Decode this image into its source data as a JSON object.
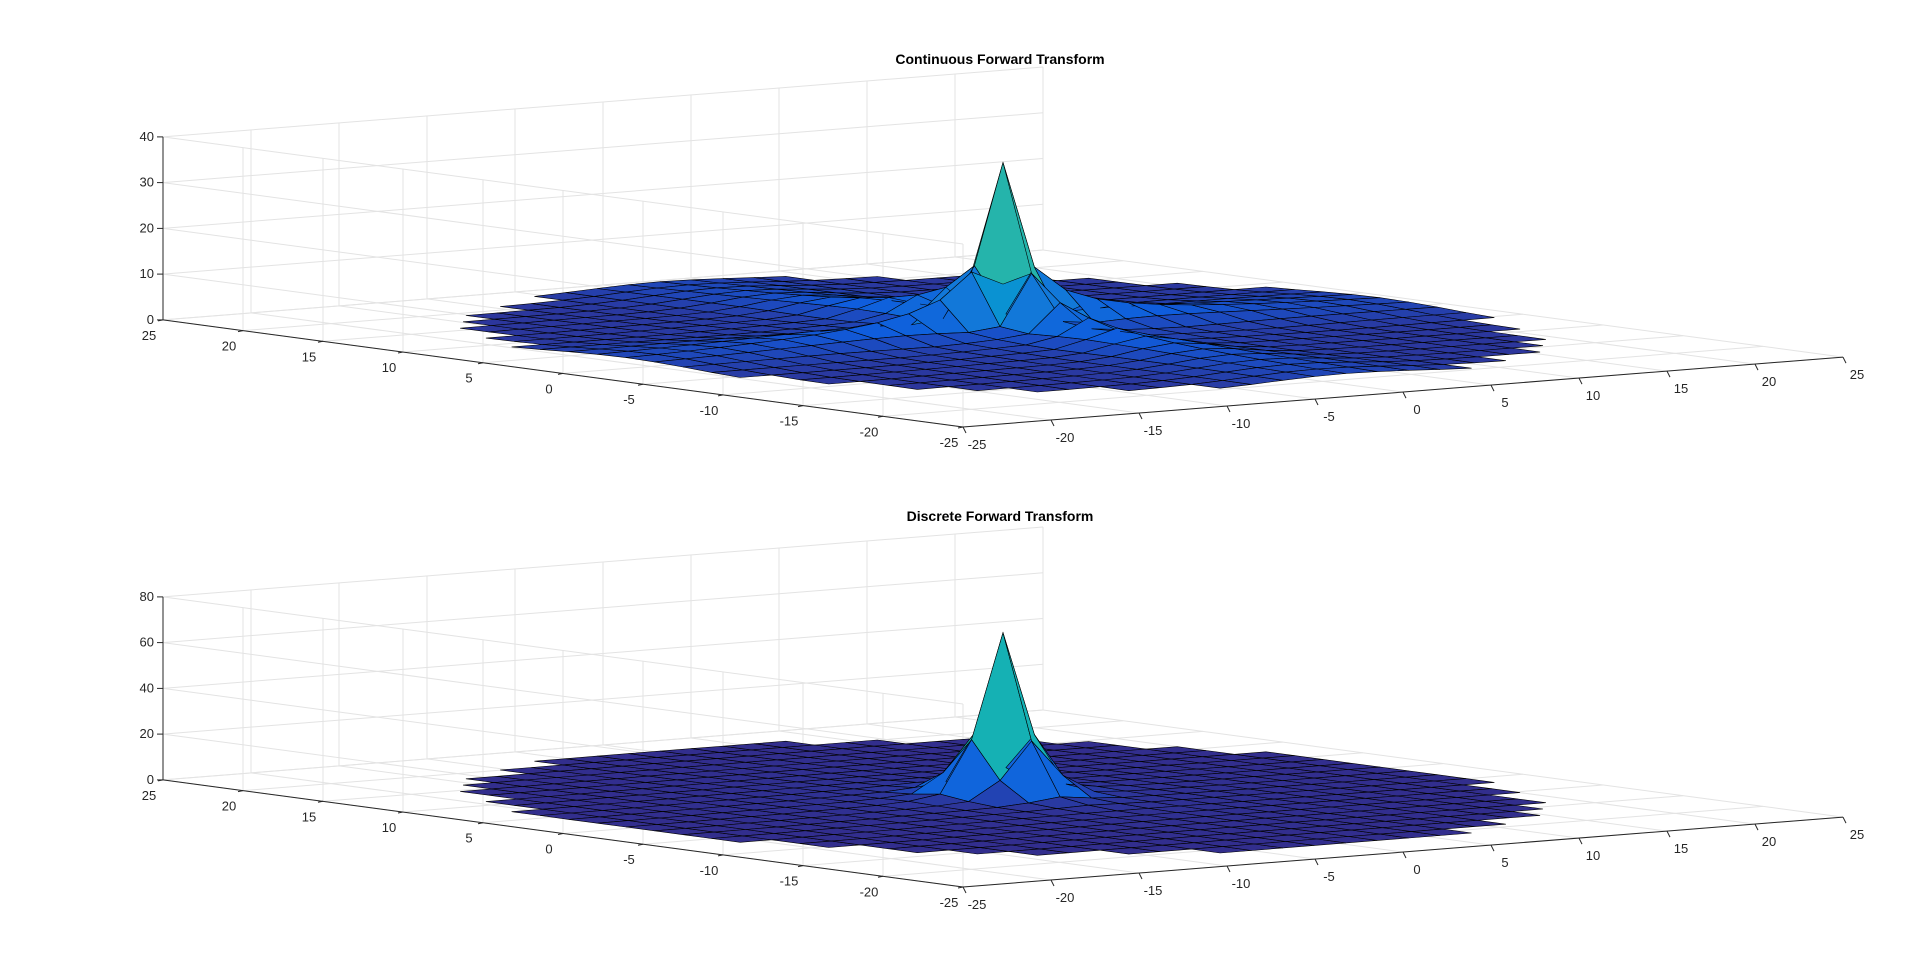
{
  "figure": {
    "background": "#ffffff",
    "colormap": "parula",
    "edge_color": "#000000"
  },
  "chart_data": [
    {
      "type": "surface",
      "title": "Continuous Forward Transform",
      "xlim": [
        -25,
        25
      ],
      "ylim": [
        -25,
        25
      ],
      "zlim": [
        0,
        40
      ],
      "x_ticks": [
        "-25",
        "-20",
        "-15",
        "-10",
        "-5",
        "0",
        "5",
        "10",
        "15",
        "20",
        "25"
      ],
      "y_ticks": [
        "-25",
        "-20",
        "-15",
        "-10",
        "-5",
        "0",
        "5",
        "10",
        "15",
        "20",
        "25"
      ],
      "z_ticks": [
        "0",
        "10",
        "20",
        "30",
        "40"
      ],
      "grid": true,
      "peak_value": 38,
      "shape": "cross-shaped ridges along both axes peaking near the origin"
    },
    {
      "type": "surface",
      "title": "Discrete Forward Transform",
      "xlim": [
        -25,
        25
      ],
      "ylim": [
        -25,
        25
      ],
      "zlim": [
        0,
        80
      ],
      "x_ticks": [
        "-25",
        "-20",
        "-15",
        "-10",
        "-5",
        "0",
        "5",
        "10",
        "15",
        "20",
        "25"
      ],
      "y_ticks": [
        "-25",
        "-20",
        "-15",
        "-10",
        "-5",
        "0",
        "5",
        "10",
        "15",
        "20",
        "25"
      ],
      "z_ticks": [
        "0",
        "20",
        "40",
        "60",
        "80"
      ],
      "grid": true,
      "peak_value": 70,
      "shape": "oscillating spikes concentrated near the origin over a flat disc"
    }
  ]
}
